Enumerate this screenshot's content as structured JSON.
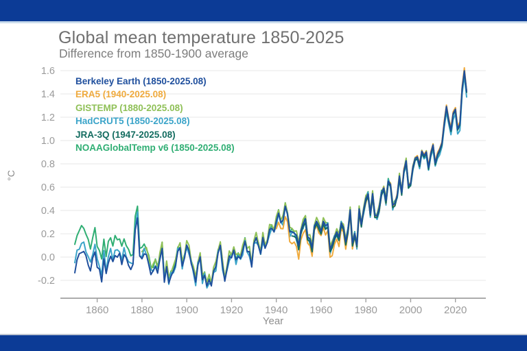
{
  "window": {
    "top_bar_color": "#0c3b96",
    "bottom_bar_color": "#0c3b96",
    "background_color": "#ffffff"
  },
  "header": {
    "title": "Global mean temperature 1850-2025",
    "subtitle": "Difference from 1850-1900 average"
  },
  "chart_data": {
    "type": "line",
    "title": "Global mean temperature 1850-2025",
    "subtitle": "Difference from 1850-1900 average",
    "xlabel": "Year",
    "ylabel": "°C",
    "x_range": [
      1850,
      2025
    ],
    "y_tick_range": [
      -0.2,
      1.6
    ],
    "x_ticks": [
      1860,
      1880,
      1900,
      1920,
      1940,
      1960,
      1980,
      2000,
      2020
    ],
    "y_ticks": [
      -0.2,
      0.0,
      0.2,
      0.4,
      0.6,
      0.8,
      1.0,
      1.2,
      1.4,
      1.6
    ],
    "grid": "horizontal-only",
    "legend_position": "top-left",
    "axis_color": "#a0a0a0",
    "grid_color": "#ececec",
    "tick_label_color": "#9a9a9a",
    "baseline_start_year": 1850,
    "baseline_anomaly_c": [
      -0.09,
      0.02,
      0.06,
      0.08,
      0.09,
      0.04,
      -0.03,
      -0.08,
      0.02,
      0.08,
      -0.05,
      -0.08,
      -0.18,
      0.02,
      -0.12,
      -0.02,
      0.04,
      -0.02,
      0.04,
      0.03,
      0.05,
      -0.04,
      0.05,
      0.01,
      -0.05,
      -0.08,
      -0.05,
      0.25,
      0.36,
      0.02,
      0.0,
      0.05,
      0.03,
      -0.05,
      -0.13,
      -0.11,
      -0.07,
      -0.12,
      -0.01,
      0.08,
      -0.2,
      -0.08,
      -0.22,
      -0.15,
      -0.12,
      -0.07,
      0.06,
      0.08,
      -0.08,
      0.0,
      0.1,
      0.05,
      -0.05,
      -0.12,
      -0.22,
      -0.06,
      0.0,
      -0.2,
      -0.15,
      -0.25,
      -0.2,
      -0.24,
      -0.12,
      -0.09,
      0.04,
      0.1,
      -0.08,
      -0.2,
      -0.1,
      0.0,
      0.0,
      0.06,
      -0.03,
      0.01,
      -0.01,
      0.05,
      0.14,
      0.05,
      0.04,
      -0.08,
      0.12,
      0.16,
      0.1,
      0.03,
      0.16,
      0.08,
      0.13,
      0.23,
      0.25,
      0.22,
      0.3,
      0.38,
      0.3,
      0.31,
      0.44,
      0.37,
      0.21,
      0.22,
      0.21,
      0.18,
      0.1,
      0.23,
      0.28,
      0.33,
      0.18,
      0.15,
      0.08,
      0.27,
      0.3,
      0.27,
      0.23,
      0.3,
      0.27,
      0.29,
      0.06,
      0.11,
      0.18,
      0.21,
      0.17,
      0.3,
      0.25,
      0.13,
      0.24,
      0.4,
      0.12,
      0.21,
      0.1,
      0.41,
      0.29,
      0.4,
      0.5,
      0.55,
      0.37,
      0.54,
      0.37,
      0.35,
      0.42,
      0.56,
      0.59,
      0.48,
      0.66,
      0.62,
      0.44,
      0.47,
      0.53,
      0.69,
      0.56,
      0.74,
      0.82,
      0.62,
      0.63,
      0.77,
      0.85,
      0.86,
      0.79,
      0.91,
      0.87,
      0.9,
      0.77,
      0.89,
      0.96,
      0.81,
      0.88,
      0.92,
      0.98,
      1.15,
      1.29,
      1.18,
      1.09,
      1.23,
      1.27,
      1.1,
      1.14,
      1.45,
      1.6,
      1.42
    ],
    "series": [
      {
        "name": "Berkeley Earth",
        "label": "Berkeley Earth (1850-2025.08)",
        "start_year": 1850,
        "coverage": "1850-2025.08",
        "color": "#1f4f9d",
        "offset_anchors": [
          [
            1850,
            -0.04
          ],
          [
            1900,
            0.0
          ],
          [
            2025,
            0.0
          ]
        ],
        "jitter_amp": 0.008,
        "jitter_phase": 0.7
      },
      {
        "name": "ERA5",
        "label": "ERA5 (1940-2025.08)",
        "start_year": 1940,
        "coverage": "1940-2025.08",
        "color": "#efaa3d",
        "offset_anchors": [
          [
            1940,
            -0.06
          ],
          [
            1950,
            -0.1
          ],
          [
            1958,
            -0.04
          ],
          [
            1965,
            -0.08
          ],
          [
            1972,
            -0.04
          ],
          [
            1980,
            -0.02
          ],
          [
            1995,
            0.0
          ],
          [
            2023,
            0.02
          ],
          [
            2024,
            0.02
          ],
          [
            2025,
            0.0
          ]
        ],
        "jitter_amp": 0.018,
        "jitter_phase": 2.1
      },
      {
        "name": "GISTEMP",
        "label": "GISTEMP (1880-2025.08)",
        "start_year": 1880,
        "coverage": "1880-2025.08",
        "color": "#8fc057",
        "offset_anchors": [
          [
            1880,
            0.04
          ],
          [
            1940,
            0.03
          ],
          [
            2000,
            0.01
          ],
          [
            2025,
            0.0
          ]
        ],
        "jitter_amp": 0.02,
        "jitter_phase": 0.5
      },
      {
        "name": "HadCRUT5",
        "label": "HadCRUT5 (1850-2025.08)",
        "start_year": 1850,
        "coverage": "1850-2025.08",
        "color": "#3ba4c9",
        "offset_anchors": [
          [
            1850,
            0.03
          ],
          [
            1900,
            -0.01
          ],
          [
            2000,
            -0.02
          ],
          [
            2024,
            -0.05
          ],
          [
            2025,
            -0.04
          ]
        ],
        "jitter_amp": 0.022,
        "jitter_phase": 3.8
      },
      {
        "name": "JRA-3Q",
        "label": "JRA-3Q (1947-2025.08)",
        "start_year": 1947,
        "coverage": "1947-2025.08",
        "color": "#136c60",
        "offset_anchors": [
          [
            1947,
            -0.03
          ],
          [
            2025,
            -0.01
          ]
        ],
        "jitter_amp": 0.012,
        "jitter_phase": 1.2
      },
      {
        "name": "NOAAGlobalTemp v6",
        "label": "NOAAGlobalTemp v6 (1850-2025.08)",
        "start_year": 1850,
        "coverage": "1850-2025.08",
        "color": "#2fae73",
        "offset_anchors": [
          [
            1850,
            0.18
          ],
          [
            1870,
            0.12
          ],
          [
            1885,
            0.04
          ],
          [
            1900,
            0.01
          ],
          [
            2025,
            0.0
          ]
        ],
        "jitter_amp": 0.02,
        "jitter_phase": 5.0
      }
    ],
    "notable_values": {
      "1878_el_nino_peak": 0.36,
      "1944_peak": 0.44,
      "1998_peak": 0.82,
      "2016_peak": 1.29,
      "2023": 1.45,
      "2024_peak": 1.6,
      "2025_partial": 1.42
    }
  }
}
